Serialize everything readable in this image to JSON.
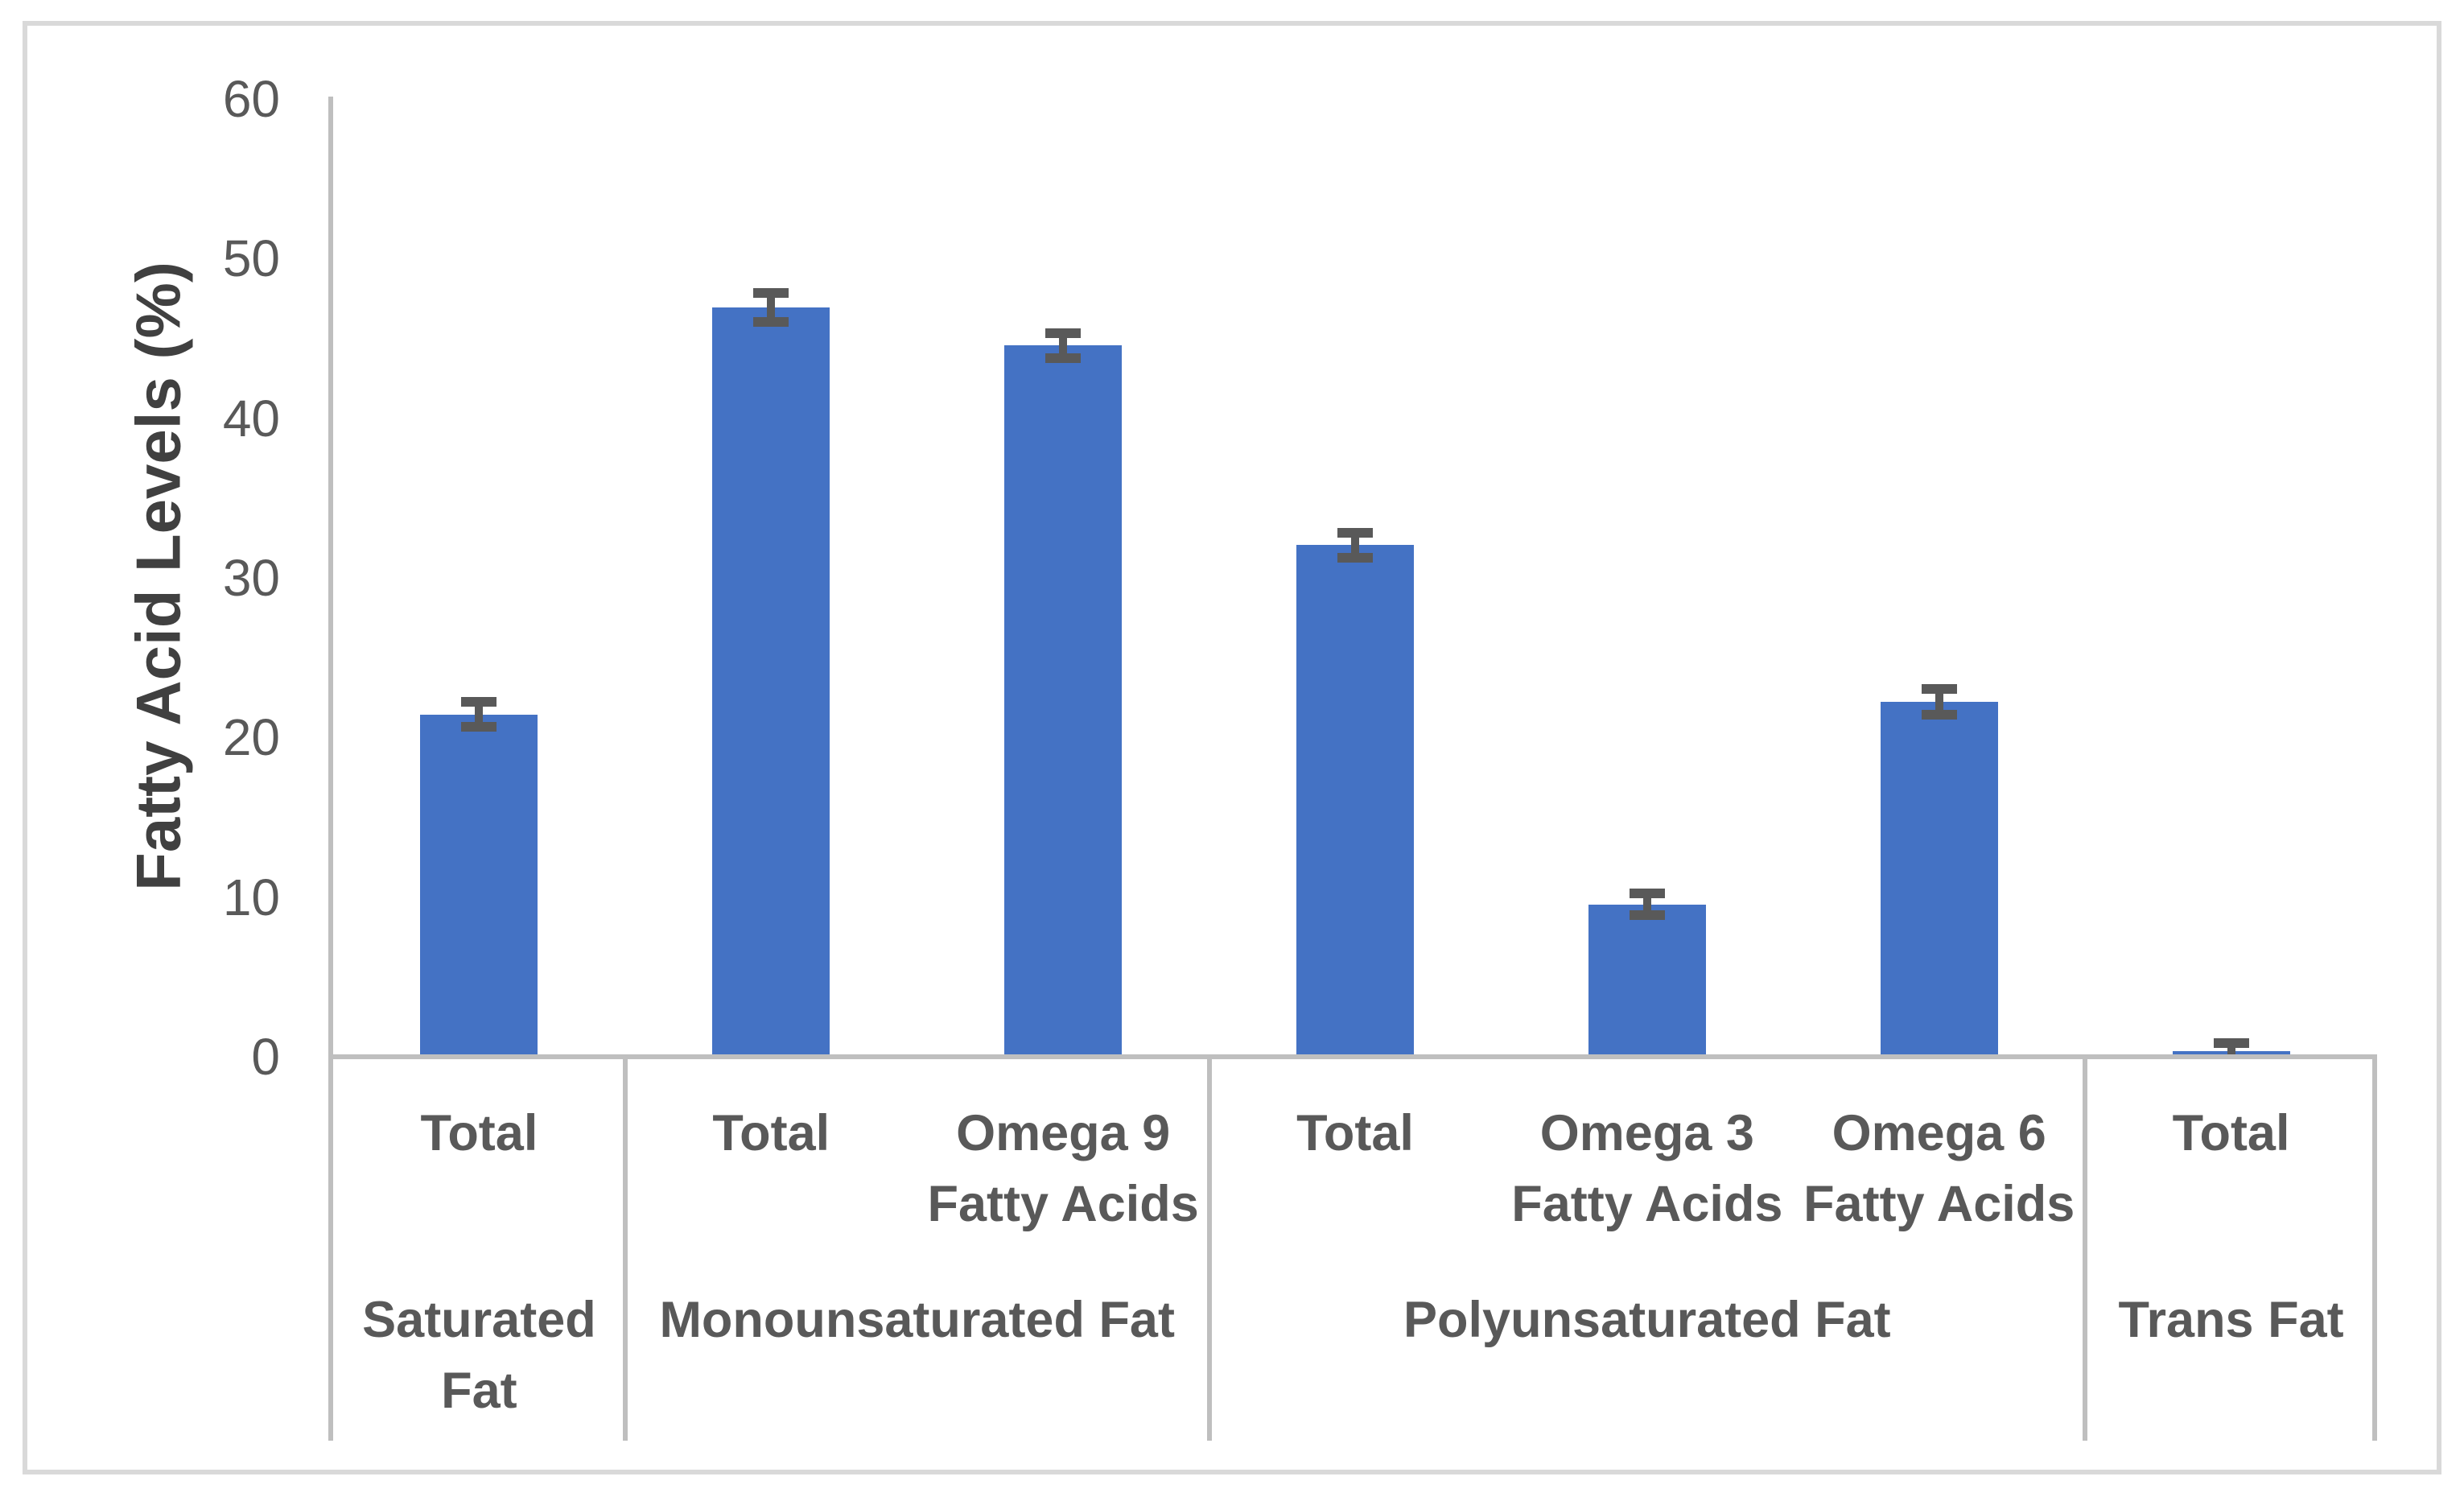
{
  "figure": {
    "y_axis_title": "Fatty Acid Levels (%)"
  },
  "chart_data": {
    "type": "bar",
    "title": "",
    "xlabel": "",
    "ylabel": "Fatty Acid Levels (%)",
    "ylim": [
      0,
      60
    ],
    "yticks": [
      60,
      50,
      40,
      30,
      20,
      10,
      0
    ],
    "grid": false,
    "legend": false,
    "error_bars": true,
    "bar_color": "#4472C4",
    "error_bar_color": "#595959",
    "axis_line_color": "#BFBFBF",
    "figure_border_color": "#D9D9D9",
    "tick_text_color": "#595959",
    "label_text_color": "#595959",
    "groups": [
      {
        "label": "Saturated Fat",
        "label_lines": [
          "Saturated",
          "Fat"
        ],
        "items": [
          {
            "label": "Total",
            "label_lines": [
              "Total"
            ],
            "value": 21.3,
            "error": 1.1
          }
        ]
      },
      {
        "label": "Monounsaturated Fat",
        "label_lines": [
          "Monounsaturated Fat"
        ],
        "items": [
          {
            "label": "Total",
            "label_lines": [
              "Total"
            ],
            "value": 46.8,
            "error": 1.2
          },
          {
            "label": "Omega 9 Fatty Acids",
            "label_lines": [
              "Omega 9",
              "Fatty Acids"
            ],
            "value": 44.4,
            "error": 1.1
          }
        ]
      },
      {
        "label": "Polyunsaturated Fat",
        "label_lines": [
          "Polyunsaturated Fat"
        ],
        "items": [
          {
            "label": "Total",
            "label_lines": [
              "Total"
            ],
            "value": 31.9,
            "error": 1.1
          },
          {
            "label": "Omega 3 Fatty Acids",
            "label_lines": [
              "Omega 3",
              "Fatty Acids"
            ],
            "value": 9.4,
            "error": 1.0
          },
          {
            "label": "Omega 6 Fatty Acids",
            "label_lines": [
              "Omega 6",
              "Fatty Acids"
            ],
            "value": 22.1,
            "error": 1.1
          }
        ]
      },
      {
        "label": "Trans Fat",
        "label_lines": [
          "Trans Fat"
        ],
        "items": [
          {
            "label": "Total",
            "label_lines": [
              "Total"
            ],
            "value": 0.2,
            "error": 0.8
          }
        ]
      }
    ]
  }
}
